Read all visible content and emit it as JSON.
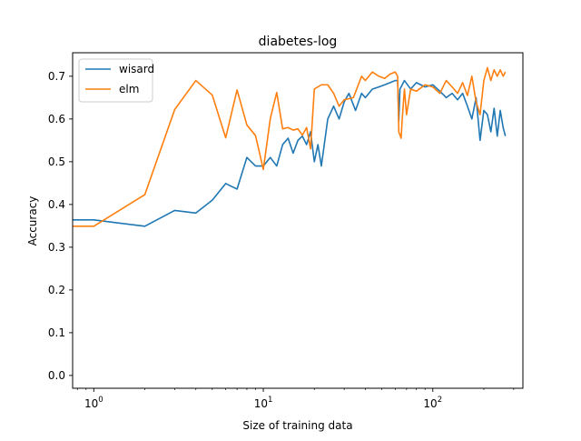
{
  "chart_data": {
    "type": "line",
    "title": "diabetes-log",
    "xlabel": "Size of training data",
    "ylabel": "Accuracy",
    "xscale": "log",
    "xlim": [
      0.75,
      340
    ],
    "ylim": [
      -0.03,
      0.755
    ],
    "x_ticks": [
      {
        "value": 1,
        "base": "10",
        "exp": "0"
      },
      {
        "value": 10,
        "base": "10",
        "exp": "1"
      },
      {
        "value": 100,
        "base": "10",
        "exp": "2"
      }
    ],
    "y_ticks": [
      {
        "value": 0.0,
        "label": "0.0"
      },
      {
        "value": 0.1,
        "label": "0.1"
      },
      {
        "value": 0.2,
        "label": "0.2"
      },
      {
        "value": 0.3,
        "label": "0.3"
      },
      {
        "value": 0.4,
        "label": "0.4"
      },
      {
        "value": 0.5,
        "label": "0.5"
      },
      {
        "value": 0.6,
        "label": "0.6"
      },
      {
        "value": 0.7,
        "label": "0.7"
      }
    ],
    "grid": false,
    "legend_position": "upper-left",
    "series": [
      {
        "name": "wisard",
        "color": "#1f77b4",
        "points": [
          [
            0.75,
            0.364
          ],
          [
            1,
            0.364
          ],
          [
            2,
            0.349
          ],
          [
            3,
            0.386
          ],
          [
            4,
            0.38
          ],
          [
            5,
            0.41
          ],
          [
            6,
            0.449
          ],
          [
            7,
            0.436
          ],
          [
            8,
            0.51
          ],
          [
            9,
            0.49
          ],
          [
            10,
            0.49
          ],
          [
            11,
            0.51
          ],
          [
            12,
            0.49
          ],
          [
            13,
            0.54
          ],
          [
            14,
            0.555
          ],
          [
            15,
            0.52
          ],
          [
            16,
            0.55
          ],
          [
            17,
            0.56
          ],
          [
            18,
            0.54
          ],
          [
            19,
            0.57
          ],
          [
            20,
            0.5
          ],
          [
            21,
            0.54
          ],
          [
            22,
            0.49
          ],
          [
            24,
            0.6
          ],
          [
            26,
            0.63
          ],
          [
            28,
            0.6
          ],
          [
            30,
            0.64
          ],
          [
            32,
            0.66
          ],
          [
            35,
            0.62
          ],
          [
            38,
            0.66
          ],
          [
            40,
            0.65
          ],
          [
            44,
            0.67
          ],
          [
            48,
            0.675
          ],
          [
            52,
            0.68
          ],
          [
            56,
            0.685
          ],
          [
            60,
            0.69
          ],
          [
            62,
            0.69
          ],
          [
            63,
            0.595
          ],
          [
            64,
            0.67
          ],
          [
            68,
            0.69
          ],
          [
            74,
            0.67
          ],
          [
            80,
            0.685
          ],
          [
            90,
            0.675
          ],
          [
            100,
            0.68
          ],
          [
            110,
            0.665
          ],
          [
            120,
            0.65
          ],
          [
            130,
            0.66
          ],
          [
            140,
            0.645
          ],
          [
            150,
            0.66
          ],
          [
            160,
            0.63
          ],
          [
            170,
            0.6
          ],
          [
            180,
            0.65
          ],
          [
            190,
            0.55
          ],
          [
            200,
            0.62
          ],
          [
            210,
            0.61
          ],
          [
            220,
            0.57
          ],
          [
            230,
            0.625
          ],
          [
            240,
            0.56
          ],
          [
            250,
            0.62
          ],
          [
            260,
            0.58
          ],
          [
            268,
            0.56
          ]
        ]
      },
      {
        "name": "elm",
        "color": "#ff7f0e",
        "points": [
          [
            0.75,
            0.349
          ],
          [
            1,
            0.349
          ],
          [
            2,
            0.423
          ],
          [
            3,
            0.622
          ],
          [
            4,
            0.69
          ],
          [
            5,
            0.656
          ],
          [
            6,
            0.556
          ],
          [
            7,
            0.668
          ],
          [
            8,
            0.586
          ],
          [
            9,
            0.561
          ],
          [
            10,
            0.482
          ],
          [
            11,
            0.601
          ],
          [
            12,
            0.662
          ],
          [
            13,
            0.577
          ],
          [
            14,
            0.58
          ],
          [
            15,
            0.574
          ],
          [
            16,
            0.577
          ],
          [
            17,
            0.562
          ],
          [
            18,
            0.58
          ],
          [
            19,
            0.53
          ],
          [
            20,
            0.67
          ],
          [
            22,
            0.68
          ],
          [
            24,
            0.68
          ],
          [
            26,
            0.66
          ],
          [
            28,
            0.63
          ],
          [
            30,
            0.645
          ],
          [
            34,
            0.65
          ],
          [
            38,
            0.7
          ],
          [
            40,
            0.69
          ],
          [
            44,
            0.71
          ],
          [
            48,
            0.7
          ],
          [
            52,
            0.695
          ],
          [
            56,
            0.705
          ],
          [
            60,
            0.71
          ],
          [
            62,
            0.7
          ],
          [
            63,
            0.57
          ],
          [
            65,
            0.555
          ],
          [
            66,
            0.6
          ],
          [
            68,
            0.67
          ],
          [
            70,
            0.61
          ],
          [
            74,
            0.67
          ],
          [
            80,
            0.665
          ],
          [
            90,
            0.68
          ],
          [
            100,
            0.675
          ],
          [
            110,
            0.66
          ],
          [
            120,
            0.69
          ],
          [
            130,
            0.675
          ],
          [
            140,
            0.66
          ],
          [
            150,
            0.685
          ],
          [
            160,
            0.655
          ],
          [
            170,
            0.7
          ],
          [
            180,
            0.64
          ],
          [
            190,
            0.61
          ],
          [
            200,
            0.69
          ],
          [
            210,
            0.72
          ],
          [
            220,
            0.69
          ],
          [
            230,
            0.715
          ],
          [
            240,
            0.7
          ],
          [
            250,
            0.715
          ],
          [
            260,
            0.7
          ],
          [
            268,
            0.71
          ]
        ]
      }
    ]
  }
}
